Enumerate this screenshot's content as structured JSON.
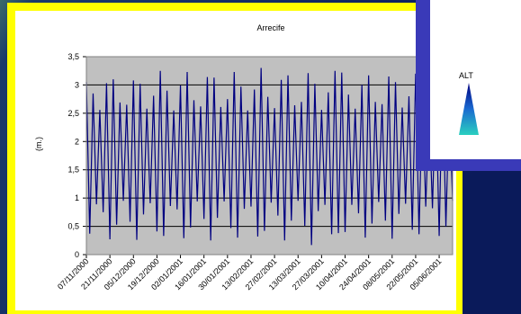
{
  "chart_data": {
    "type": "line",
    "title": "Arrecife",
    "y_label": "(m.)",
    "color": "#000080",
    "plot_background": "#c0c0c0",
    "grid": true,
    "xlim": [
      0,
      218
    ],
    "ylim": [
      0,
      3.5
    ],
    "yticks": [
      0,
      {
        "value": 0.5,
        "label": "0,5"
      },
      1,
      {
        "value": 1.5,
        "label": "1,5"
      },
      2,
      {
        "value": 2.5,
        "label": "2,5"
      },
      3,
      {
        "value": 3.5,
        "label": "3,5"
      }
    ],
    "xticks": [
      {
        "value": 0,
        "label": "07/11/2000"
      },
      {
        "value": 14,
        "label": "21/11/2000"
      },
      {
        "value": 28,
        "label": "05/12/2000"
      },
      {
        "value": 42,
        "label": "19/12/2000"
      },
      {
        "value": 56,
        "label": "02/01/2001"
      },
      {
        "value": 70,
        "label": "16/01/2001"
      },
      {
        "value": 84,
        "label": "30/01/2001"
      },
      {
        "value": 98,
        "label": "13/02/2001"
      },
      {
        "value": 112,
        "label": "27/02/2001"
      },
      {
        "value": 126,
        "label": "13/03/2001"
      },
      {
        "value": 140,
        "label": "27/03/2001"
      },
      {
        "value": 154,
        "label": "10/04/2001"
      },
      {
        "value": 168,
        "label": "24/04/2001"
      },
      {
        "value": 182,
        "label": "08/05/2001"
      },
      {
        "value": 196,
        "label": "22/05/2001"
      },
      {
        "value": 210,
        "label": "05/06/2001"
      }
    ],
    "x": [
      0,
      2,
      4,
      6,
      8,
      10,
      12,
      14,
      16,
      18,
      20,
      22,
      24,
      26,
      28,
      30,
      32,
      34,
      36,
      38,
      40,
      42,
      44,
      46,
      48,
      50,
      52,
      54,
      56,
      58,
      60,
      62,
      64,
      66,
      68,
      70,
      72,
      74,
      76,
      78,
      80,
      82,
      84,
      86,
      88,
      90,
      92,
      94,
      96,
      98,
      100,
      102,
      104,
      106,
      108,
      110,
      112,
      114,
      116,
      118,
      120,
      122,
      124,
      126,
      128,
      130,
      132,
      134,
      136,
      138,
      140,
      142,
      144,
      146,
      148,
      150,
      152,
      154,
      156,
      158,
      160,
      162,
      164,
      166,
      168,
      170,
      172,
      174,
      176,
      178,
      180,
      182,
      184,
      186,
      188,
      190,
      192,
      194,
      196,
      198,
      200,
      202,
      204,
      206,
      208,
      210,
      212,
      214,
      216,
      218
    ],
    "values": [
      3.05,
      0.37,
      2.85,
      0.89,
      2.56,
      0.75,
      3.03,
      0.27,
      3.1,
      0.53,
      2.69,
      0.95,
      2.65,
      0.58,
      3.08,
      0.26,
      3.02,
      0.71,
      2.58,
      0.91,
      2.81,
      0.41,
      3.25,
      0.33,
      2.9,
      0.86,
      2.55,
      0.8,
      2.99,
      0.29,
      3.23,
      0.48,
      2.73,
      0.94,
      2.62,
      0.63,
      3.14,
      0.25,
      3.13,
      0.65,
      2.61,
      0.94,
      2.75,
      0.47,
      3.23,
      0.3,
      2.97,
      0.81,
      2.55,
      0.85,
      2.92,
      0.32,
      3.3,
      0.42,
      2.79,
      0.92,
      2.59,
      0.69,
      3.09,
      0.25,
      3.17,
      0.6,
      2.64,
      0.95,
      2.7,
      0.51,
      3.21,
      0.17,
      3.02,
      0.77,
      2.56,
      0.88,
      2.87,
      0.36,
      3.25,
      0.38,
      3.22,
      0.4,
      2.83,
      0.88,
      2.58,
      0.73,
      3.0,
      0.3,
      3.17,
      0.55,
      2.7,
      0.93,
      2.66,
      0.6,
      3.15,
      0.28,
      3.05,
      0.72,
      2.6,
      0.9,
      2.8,
      0.44,
      3.2,
      0.36,
      2.88,
      0.85,
      2.57,
      0.82,
      2.96,
      0.33,
      3.18,
      0.5,
      2.72,
      0.95
    ]
  },
  "side_panel": {
    "label": "ALT"
  }
}
